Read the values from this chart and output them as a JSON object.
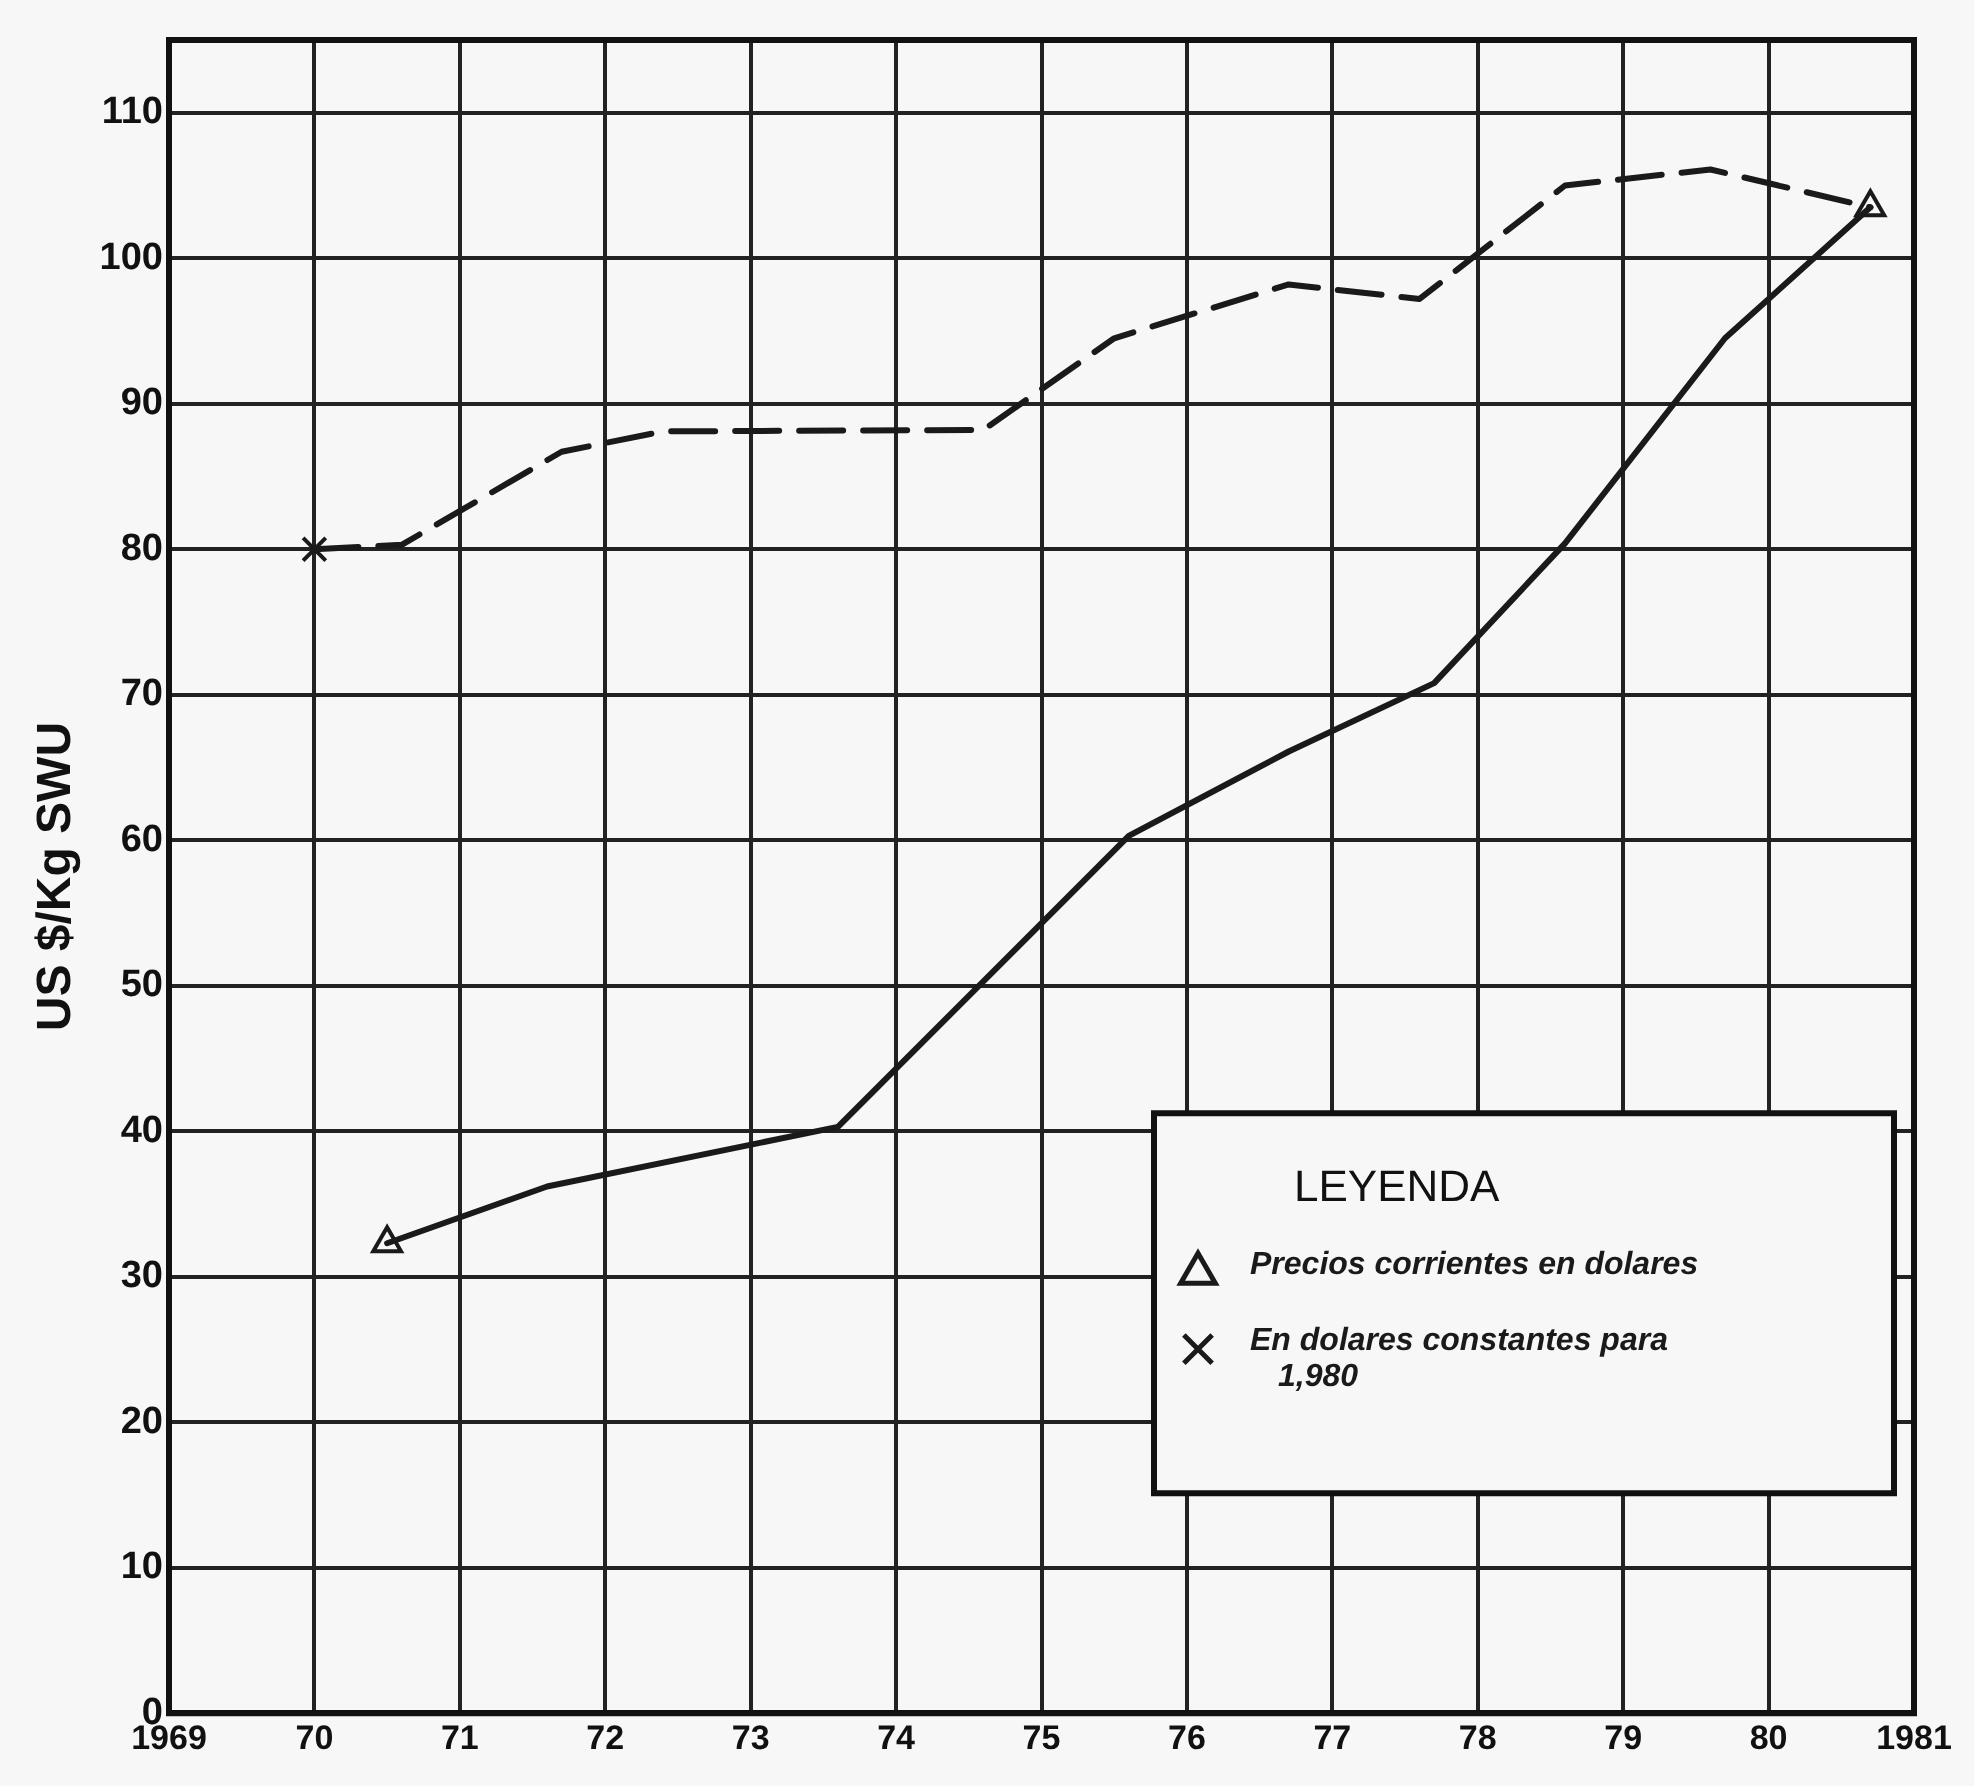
{
  "chart_data": {
    "type": "line",
    "ylabel": "US $/Kg SWU",
    "legend_title": "LEYENDA",
    "legend": "bottom right",
    "grid": true,
    "xlim": [
      1969,
      1981
    ],
    "xticks": [
      1969,
      {
        "value": 1970,
        "label": "70"
      },
      {
        "value": 1971,
        "label": "71"
      },
      {
        "value": 1972,
        "label": "72"
      },
      {
        "value": 1973,
        "label": "73"
      },
      {
        "value": 1974,
        "label": "74"
      },
      {
        "value": 1975,
        "label": "75"
      },
      {
        "value": 1976,
        "label": "76"
      },
      {
        "value": 1977,
        "label": "77"
      },
      {
        "value": 1978,
        "label": "78"
      },
      {
        "value": 1979,
        "label": "79"
      },
      {
        "value": 1980,
        "label": "80"
      },
      1981
    ],
    "ylim": [
      0,
      115
    ],
    "yticks": [
      0,
      10,
      20,
      30,
      40,
      50,
      60,
      70,
      80,
      90,
      100,
      110
    ],
    "series": [
      {
        "color": "#1a1a1a",
        "line_style": "solid",
        "marker": "none",
        "x": [
          1970.5,
          1971.6,
          1973.6,
          1975.6,
          1976.7,
          1977.7,
          1978.6,
          1979.7,
          1980.7
        ],
        "values": [
          32.3,
          36.2,
          40.3,
          60.3,
          66.1,
          70.8,
          80.4,
          94.5,
          103.5
        ]
      },
      {
        "color": "#1a1a1a",
        "line_style": "dashed",
        "marker": "none",
        "x": [
          1970,
          1970.6,
          1971.7,
          1972.4,
          1974.6,
          1975.5,
          1976.7,
          1977.6,
          1978.6,
          1979.6,
          1980.7
        ],
        "values": [
          80,
          80.3,
          86.7,
          88.1,
          88.2,
          94.5,
          98.2,
          97.2,
          105,
          106.1,
          103.5
        ]
      },
      {
        "type": "scatter",
        "name": "Precios corrientes en dolares",
        "color": "#1a1a1a",
        "marker": "triangle",
        "x": [
          1970.5,
          1980.7
        ],
        "values": [
          32.3,
          103.5
        ]
      },
      {
        "type": "scatter",
        "name": "En dolares constantes para 1,980",
        "color": "#1a1a1a",
        "marker": "cross",
        "x": [
          1970
        ],
        "values": [
          80
        ]
      }
    ]
  }
}
